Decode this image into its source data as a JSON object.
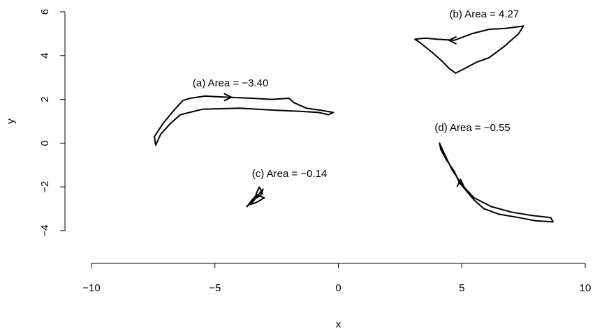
{
  "chart_data": {
    "type": "line",
    "xlabel": "x",
    "ylabel": "y",
    "xlim": [
      -10,
      10
    ],
    "ylim": [
      -4,
      6
    ],
    "x_ticks": [
      "−10",
      "−5",
      "0",
      "5",
      "10"
    ],
    "y_ticks": [
      "−4",
      "−2",
      "0",
      "2",
      "4",
      "6"
    ],
    "grid": false,
    "series": [
      {
        "label": "(a) Area =  −3.40",
        "points": [
          [
            -7.4,
            -0.1
          ],
          [
            -7.2,
            0.4
          ],
          [
            -6.8,
            0.9
          ],
          [
            -6.4,
            1.3
          ],
          [
            -5.5,
            1.55
          ],
          [
            -4.0,
            1.6
          ],
          [
            -2.5,
            1.5
          ],
          [
            -1.5,
            1.45
          ],
          [
            -0.8,
            1.4
          ],
          [
            -0.4,
            1.3
          ],
          [
            -0.2,
            1.4
          ],
          [
            -0.7,
            1.5
          ],
          [
            -1.3,
            1.6
          ],
          [
            -1.8,
            1.85
          ],
          [
            -2.0,
            2.05
          ],
          [
            -2.7,
            2.0
          ],
          [
            -3.5,
            2.05
          ],
          [
            -4.5,
            2.1
          ],
          [
            -5.4,
            2.15
          ],
          [
            -6.0,
            2.05
          ],
          [
            -6.3,
            1.95
          ],
          [
            -6.7,
            1.45
          ],
          [
            -7.1,
            0.9
          ],
          [
            -7.45,
            0.3
          ],
          [
            -7.4,
            -0.1
          ]
        ],
        "arrow": {
          "at": [
            -4.5,
            2.1
          ],
          "toward": [
            -4.2,
            2.1
          ]
        },
        "label_pos": [
          -5.9,
          2.6
        ]
      },
      {
        "label": "(b) Area =  4.27",
        "points": [
          [
            4.75,
            3.2
          ],
          [
            4.5,
            3.4
          ],
          [
            4.2,
            3.75
          ],
          [
            3.8,
            4.15
          ],
          [
            3.3,
            4.6
          ],
          [
            3.1,
            4.75
          ],
          [
            3.5,
            4.8
          ],
          [
            4.0,
            4.75
          ],
          [
            4.7,
            4.7
          ],
          [
            5.4,
            5.0
          ],
          [
            6.1,
            5.2
          ],
          [
            6.8,
            5.25
          ],
          [
            7.5,
            5.35
          ],
          [
            7.3,
            5.0
          ],
          [
            6.7,
            4.4
          ],
          [
            6.1,
            3.9
          ],
          [
            5.6,
            3.7
          ],
          [
            5.1,
            3.4
          ],
          [
            4.75,
            3.2
          ]
        ],
        "arrow": {
          "at": [
            4.65,
            4.7
          ],
          "toward": [
            4.45,
            4.7
          ]
        },
        "label_pos": [
          4.5,
          5.75
        ]
      },
      {
        "label": "(c) Area =  −0.14",
        "points": [
          [
            -3.7,
            -2.9
          ],
          [
            -3.5,
            -2.6
          ],
          [
            -3.3,
            -2.35
          ],
          [
            -3.0,
            -2.5
          ],
          [
            -3.3,
            -2.7
          ],
          [
            -3.55,
            -2.8
          ],
          [
            -3.2,
            -2.3
          ],
          [
            -3.05,
            -2.1
          ],
          [
            -3.15,
            -2.4
          ],
          [
            -3.4,
            -2.55
          ],
          [
            -3.7,
            -2.9
          ]
        ],
        "arrow": {
          "at": [
            -3.2,
            -2.2
          ],
          "toward": [
            -3.2,
            -2.0
          ]
        },
        "label_pos": [
          -3.5,
          -1.55
        ]
      },
      {
        "label": "(d) Area =  −0.55",
        "points": [
          [
            4.1,
            0.0
          ],
          [
            4.3,
            -0.5
          ],
          [
            4.6,
            -1.2
          ],
          [
            5.0,
            -1.9
          ],
          [
            5.5,
            -2.5
          ],
          [
            6.2,
            -2.9
          ],
          [
            7.0,
            -3.15
          ],
          [
            7.8,
            -3.3
          ],
          [
            8.6,
            -3.4
          ],
          [
            8.7,
            -3.6
          ],
          [
            8.0,
            -3.55
          ],
          [
            7.3,
            -3.4
          ],
          [
            6.5,
            -3.25
          ],
          [
            5.9,
            -3.0
          ],
          [
            5.5,
            -2.6
          ],
          [
            5.2,
            -2.2
          ],
          [
            4.9,
            -1.8
          ],
          [
            4.7,
            -1.3
          ],
          [
            4.4,
            -0.8
          ],
          [
            4.15,
            -0.3
          ],
          [
            4.1,
            0.0
          ]
        ],
        "arrow": {
          "at": [
            4.95,
            -1.85
          ],
          "toward": [
            4.95,
            -1.6
          ]
        },
        "label_pos": [
          3.9,
          0.55
        ]
      }
    ]
  }
}
